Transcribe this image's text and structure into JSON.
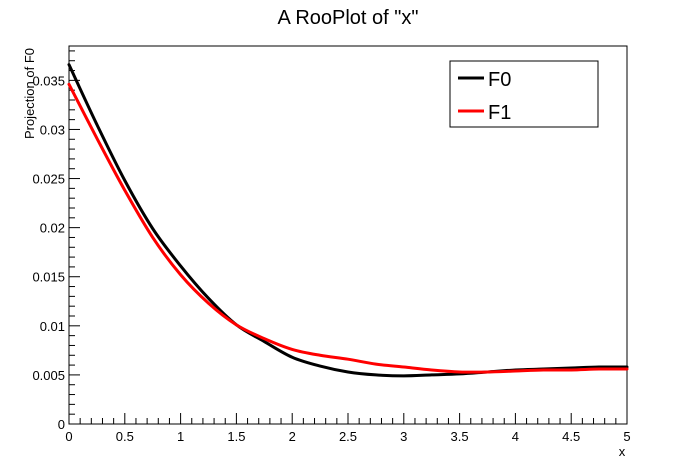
{
  "chart_data": {
    "type": "line",
    "title": "A RooPlot of \"x\"",
    "xlabel": "x",
    "ylabel": "Projection of F0",
    "xlim": [
      0,
      5
    ],
    "ylim": [
      0,
      0.0385
    ],
    "x_ticks": [
      0,
      0.5,
      1,
      1.5,
      2,
      2.5,
      3,
      3.5,
      4,
      4.5,
      5
    ],
    "x_tick_labels": [
      "0",
      "0.5",
      "1",
      "1.5",
      "2",
      "2.5",
      "3",
      "3.5",
      "4",
      "4.5",
      "5"
    ],
    "y_ticks": [
      0,
      0.005,
      0.01,
      0.015,
      0.02,
      0.025,
      0.03,
      0.035
    ],
    "y_tick_labels": [
      "0",
      "0.005",
      "0.01",
      "0.015",
      "0.02",
      "0.025",
      "0.03",
      "0.035"
    ],
    "grid": false,
    "legend": "top-right",
    "x": [
      0,
      0.25,
      0.5,
      0.75,
      1,
      1.25,
      1.5,
      1.75,
      2,
      2.25,
      2.5,
      2.75,
      3,
      3.25,
      3.5,
      3.75,
      4,
      4.25,
      4.5,
      4.75,
      5
    ],
    "series": [
      {
        "name": "F0",
        "color": "#000000",
        "values": [
          0.0366,
          0.0305,
          0.0248,
          0.0199,
          0.0161,
          0.0128,
          0.0101,
          0.0084,
          0.0068,
          0.0059,
          0.0053,
          0.005,
          0.0049,
          0.005,
          0.0051,
          0.0053,
          0.0055,
          0.0056,
          0.0057,
          0.0058,
          0.0058
        ]
      },
      {
        "name": "F1",
        "color": "#ff0000",
        "values": [
          0.0346,
          0.0291,
          0.0238,
          0.019,
          0.0152,
          0.0123,
          0.0101,
          0.0087,
          0.0076,
          0.007,
          0.0066,
          0.0061,
          0.0058,
          0.0055,
          0.0053,
          0.0053,
          0.0054,
          0.0055,
          0.0055,
          0.0056,
          0.0056
        ]
      }
    ]
  }
}
